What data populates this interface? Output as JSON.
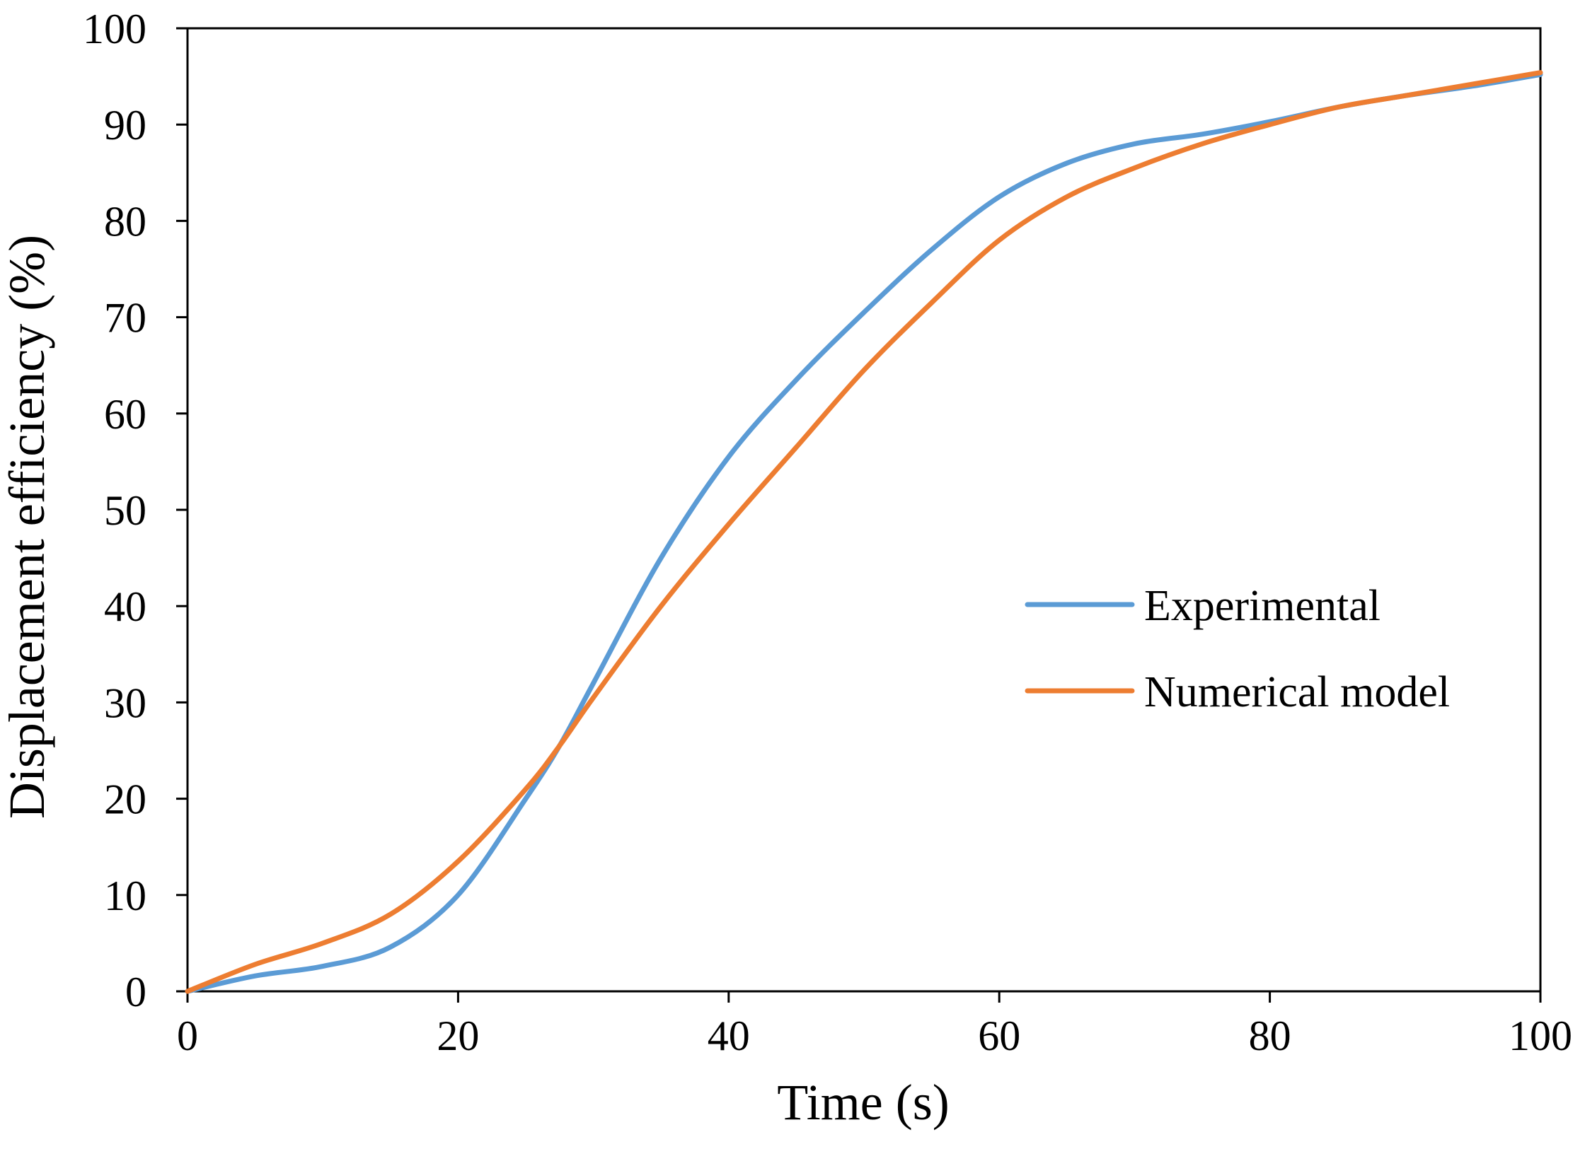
{
  "colors": {
    "experimental": "#5B9BD5",
    "numerical": "#ED7D31",
    "axis": "#000000",
    "background": "#FFFFFF"
  },
  "chart_data": {
    "type": "line",
    "title": "",
    "xlabel": "Time (s)",
    "ylabel": "Displacement efficiency (%)",
    "xlim": [
      0,
      100
    ],
    "ylim": [
      0,
      100
    ],
    "x_ticks": [
      0,
      20,
      40,
      60,
      80,
      100
    ],
    "y_ticks": [
      0,
      10,
      20,
      30,
      40,
      50,
      60,
      70,
      80,
      90,
      100
    ],
    "grid": false,
    "legend_position": "right-middle",
    "series": [
      {
        "name": "Experimental",
        "color": "#5B9BD5",
        "x": [
          0,
          5,
          10,
          15,
          20,
          25,
          27.5,
          30,
          35,
          40,
          45,
          50,
          55,
          60,
          65,
          70,
          75,
          80,
          85,
          90,
          95,
          100
        ],
        "y": [
          0,
          1.6,
          2.6,
          4.6,
          10,
          20,
          25.5,
          32,
          45,
          55.5,
          63.5,
          70.5,
          77,
          82.5,
          86,
          88,
          89,
          90.3,
          91.8,
          93,
          94,
          95.2
        ]
      },
      {
        "name": "Numerical model",
        "color": "#ED7D31",
        "x": [
          0,
          5,
          10,
          15,
          20,
          25,
          27.5,
          30,
          35,
          40,
          45,
          50,
          55,
          60,
          65,
          70,
          75,
          80,
          85,
          90,
          95,
          100
        ],
        "y": [
          0,
          2.8,
          5,
          8,
          13.5,
          21,
          25.5,
          30.5,
          40,
          48.5,
          56.5,
          64.5,
          71.5,
          78,
          82.5,
          85.5,
          88,
          90,
          91.8,
          93,
          94.2,
          95.4
        ]
      }
    ]
  }
}
